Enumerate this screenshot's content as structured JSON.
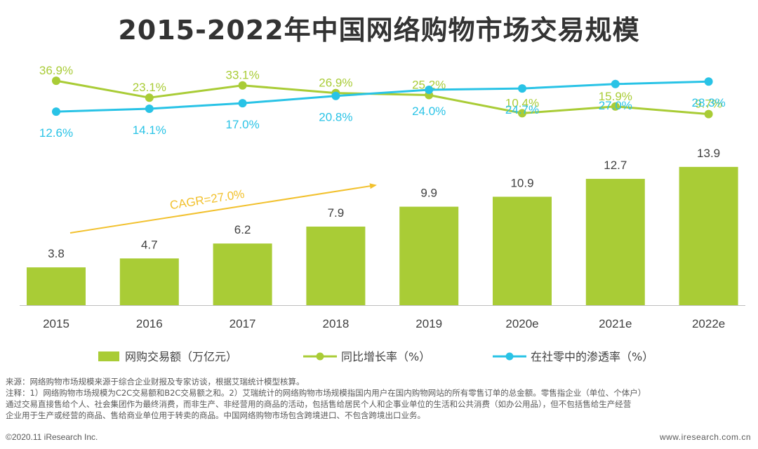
{
  "title": "2015-2022年中国网络购物市场交易规模",
  "colors": {
    "bar": "#a9cc36",
    "growth": "#a9cc36",
    "penetration": "#29c3e6",
    "cagr": "#f2c12e",
    "text": "#404040"
  },
  "chart_data": {
    "type": "bar+line",
    "categories": [
      "2015",
      "2016",
      "2017",
      "2018",
      "2019",
      "2020e",
      "2021e",
      "2022e"
    ],
    "series": [
      {
        "name": "网购交易额（万亿元）",
        "kind": "bar",
        "values": [
          3.8,
          4.7,
          6.2,
          7.9,
          9.9,
          10.9,
          12.7,
          13.9
        ]
      },
      {
        "name": "同比增长率（%）",
        "kind": "line",
        "values": [
          36.9,
          23.1,
          33.1,
          26.9,
          25.2,
          10.4,
          15.9,
          9.7
        ],
        "labels": [
          "36.9%",
          "23.1%",
          "33.1%",
          "26.9%",
          "25.2%",
          "10.4%",
          "15.9%",
          "9.7%"
        ]
      },
      {
        "name": "在社零中的渗透率（%）",
        "kind": "line",
        "values": [
          12.6,
          14.1,
          17.0,
          20.8,
          24.0,
          24.7,
          27.0,
          28.3
        ],
        "labels": [
          "12.6%",
          "14.1%",
          "17.0%",
          "20.8%",
          "24.0%",
          "24.7%",
          "27.0%",
          "28.3%"
        ]
      }
    ],
    "bar_labels": [
      "3.8",
      "4.7",
      "6.2",
      "7.9",
      "9.9",
      "10.9",
      "12.7",
      "13.9"
    ],
    "annotation": "CAGR=27.0%",
    "legend_position": "bottom"
  },
  "notes": {
    "source": "来源：网络购物市场规模来源于综合企业财报及专家访谈，根据艾瑞统计模型核算。",
    "note1": "注释：1）网络购物市场规模为C2C交易额和B2C交易额之和。2）艾瑞统计的网络购物市场规模指国内用户在国内购物网站的所有零售订单的总金额。零售指企业（单位、个体户）",
    "note2": "通过交易直接售给个人、社会集团作为最终消费，而非生产、非经营用的商品的活动，包括售给居民个人和企事业单位的生活和公共消费（如办公用品），但不包括售给生产经营",
    "note3": "企业用于生产或经营的商品、售给商业单位用于转卖的商品。中国网络购物市场包含跨境进口、不包含跨境出口业务。"
  },
  "footer": {
    "copyright": "©2020.11 iResearch Inc.",
    "website": "www.iresearch.com.cn"
  }
}
